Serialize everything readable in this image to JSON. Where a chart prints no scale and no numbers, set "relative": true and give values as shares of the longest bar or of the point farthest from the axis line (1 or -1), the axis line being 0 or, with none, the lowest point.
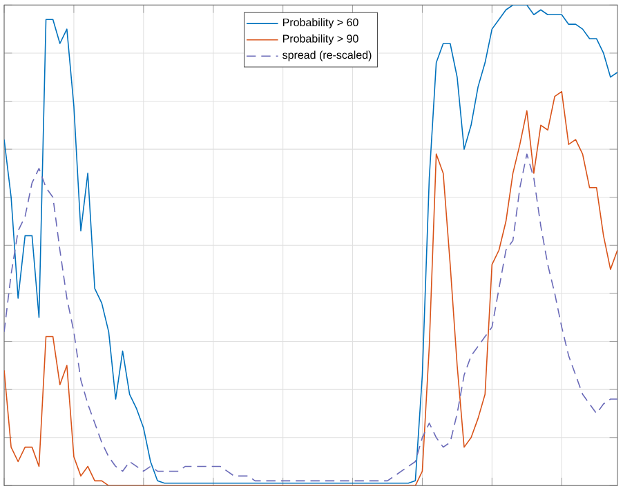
{
  "chart_data": {
    "type": "line",
    "relative": true,
    "grid": true,
    "legend": "top",
    "tick_labels": false,
    "categories": [
      null,
      null,
      null,
      null,
      null,
      null,
      null,
      null,
      null,
      null,
      null,
      null,
      null,
      null,
      null,
      null,
      null,
      null,
      null,
      null,
      null,
      null,
      null,
      null,
      null,
      null,
      null,
      null,
      null,
      null,
      null,
      null,
      null,
      null,
      null,
      null,
      null,
      null,
      null,
      null,
      null,
      null,
      null,
      null,
      null,
      null,
      null,
      null,
      null,
      null,
      null,
      null,
      null,
      null,
      null,
      null,
      null,
      null,
      null,
      null,
      null,
      null,
      null,
      null,
      null,
      null,
      null,
      null,
      null,
      null,
      null,
      null,
      null,
      null,
      null,
      null,
      null,
      null,
      null,
      null,
      null,
      null,
      null,
      null,
      null,
      null,
      null,
      null,
      null
    ],
    "series": [
      {
        "name": "Probability > 60",
        "color": "#0072bd",
        "line_style": "solid",
        "values": [
          0.72,
          0.6,
          0.39,
          0.52,
          0.52,
          0.35,
          0.97,
          0.97,
          0.92,
          0.95,
          0.79,
          0.53,
          0.65,
          0.41,
          0.38,
          0.32,
          0.18,
          0.28,
          0.19,
          0.16,
          0.12,
          0.05,
          0.01,
          0.005,
          0.005,
          0.005,
          0.005,
          0.005,
          0.005,
          0.005,
          0.005,
          0.005,
          0.005,
          0.005,
          0.005,
          0.005,
          0.005,
          0.005,
          0.005,
          0.005,
          0.005,
          0.005,
          0.005,
          0.005,
          0.005,
          0.005,
          0.005,
          0.005,
          0.005,
          0.005,
          0.005,
          0.005,
          0.005,
          0.005,
          0.005,
          0.005,
          0.005,
          0.005,
          0.005,
          0.01,
          0.23,
          0.64,
          0.88,
          0.92,
          0.92,
          0.85,
          0.7,
          0.75,
          0.83,
          0.88,
          0.95,
          0.97,
          0.99,
          1.0,
          1.0,
          1.0,
          0.98,
          0.99,
          0.98,
          0.98,
          0.98,
          0.96,
          0.96,
          0.95,
          0.93,
          0.93,
          0.9,
          0.85,
          0.86
        ]
      },
      {
        "name": "Probability > 90",
        "color": "#d95319",
        "line_style": "solid",
        "values": [
          0.24,
          0.08,
          0.05,
          0.08,
          0.08,
          0.04,
          0.31,
          0.31,
          0.21,
          0.25,
          0.06,
          0.02,
          0.04,
          0.01,
          0.01,
          0,
          0,
          0,
          0,
          0,
          0,
          0,
          0,
          0,
          0,
          0,
          0,
          0,
          0,
          0,
          0,
          0,
          0,
          0,
          0,
          0,
          0,
          0,
          0,
          0,
          0,
          0,
          0,
          0,
          0,
          0,
          0,
          0,
          0,
          0,
          0,
          0,
          0,
          0,
          0,
          0,
          0,
          0,
          0,
          0,
          0.03,
          0.29,
          0.69,
          0.65,
          0.46,
          0.25,
          0.08,
          0.1,
          0.14,
          0.19,
          0.46,
          0.49,
          0.55,
          0.65,
          0.71,
          0.78,
          0.65,
          0.75,
          0.74,
          0.81,
          0.82,
          0.71,
          0.72,
          0.69,
          0.62,
          0.62,
          0.52,
          0.45,
          0.49
        ]
      },
      {
        "name": "spread (re-scaled)",
        "color": "#6a6ab8",
        "line_style": "dashed",
        "values": [
          0.32,
          0.44,
          0.53,
          0.56,
          0.63,
          0.66,
          0.62,
          0.6,
          0.49,
          0.39,
          0.32,
          0.22,
          0.17,
          0.13,
          0.09,
          0.06,
          0.04,
          0.03,
          0.05,
          0.04,
          0.03,
          0.04,
          0.03,
          0.03,
          0.03,
          0.03,
          0.04,
          0.04,
          0.04,
          0.04,
          0.04,
          0.04,
          0.03,
          0.02,
          0.02,
          0.02,
          0.01,
          0.01,
          0.01,
          0.01,
          0.01,
          0.01,
          0.01,
          0.01,
          0.01,
          0.01,
          0.01,
          0.01,
          0.01,
          0.01,
          0.01,
          0.01,
          0.01,
          0.01,
          0.01,
          0.01,
          0.02,
          0.03,
          0.04,
          0.05,
          0.1,
          0.13,
          0.1,
          0.08,
          0.09,
          0.15,
          0.23,
          0.27,
          0.29,
          0.31,
          0.33,
          0.41,
          0.49,
          0.51,
          0.62,
          0.69,
          0.64,
          0.54,
          0.46,
          0.4,
          0.33,
          0.27,
          0.23,
          0.19,
          0.17,
          0.15,
          0.17,
          0.18,
          0.18
        ]
      }
    ]
  }
}
